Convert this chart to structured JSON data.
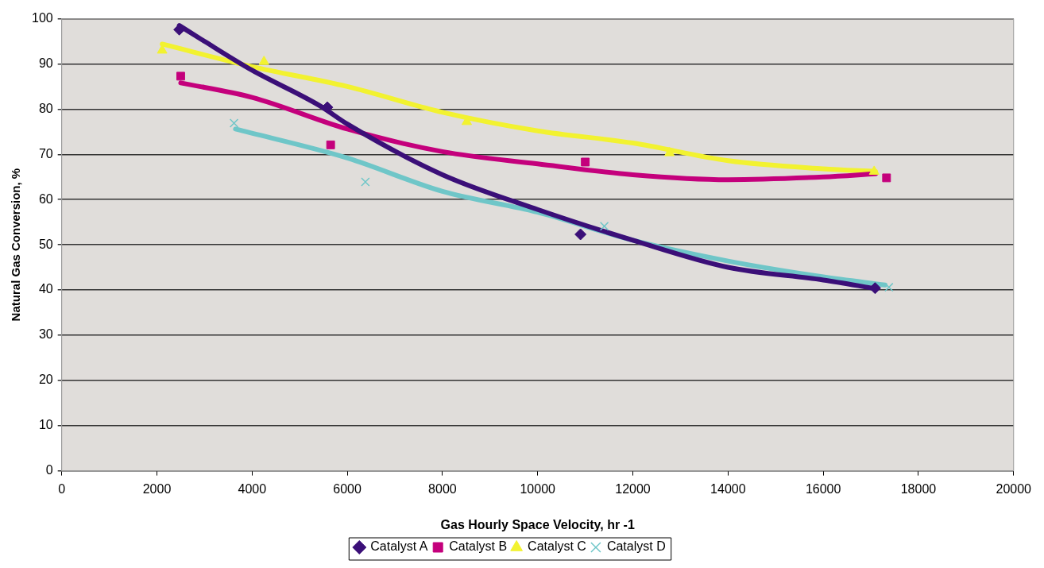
{
  "chart_data": {
    "type": "scatter",
    "xlabel": "Gas Hourly Space Velocity, hr -1",
    "ylabel": "Natural Gas Conversion, %",
    "xlim": [
      0,
      20000
    ],
    "xticks": [
      0,
      2000,
      4000,
      6000,
      8000,
      10000,
      12000,
      14000,
      16000,
      18000,
      20000
    ],
    "ylim": [
      0,
      100
    ],
    "yticks": [
      0,
      10,
      20,
      30,
      40,
      50,
      60,
      70,
      80,
      90,
      100
    ],
    "grid": "y",
    "legend": "bottom",
    "series": [
      {
        "name": "Catalyst A",
        "marker": "diamond",
        "color": "#3b0f78",
        "x": [
          2470,
          5580,
          10900,
          17090
        ],
        "values": [
          97.6,
          80.4,
          52.3,
          40.4
        ]
      },
      {
        "name": "Catalyst B",
        "marker": "square",
        "color": "#c4007c",
        "x": [
          2500,
          5650,
          11000,
          17330
        ],
        "values": [
          87.3,
          72.1,
          68.3,
          64.8
        ]
      },
      {
        "name": "Catalyst C",
        "marker": "triangle",
        "color": "#f2f230",
        "x": [
          2110,
          4250,
          8510,
          12770,
          17070
        ],
        "values": [
          93,
          90.5,
          77.2,
          70.3,
          66.2
        ]
      },
      {
        "name": "Catalyst D",
        "marker": "cross",
        "color": "#6fc6c8",
        "x": [
          3620,
          6380,
          11400,
          17380
        ],
        "values": [
          76.9,
          63.9,
          54.1,
          40.6
        ]
      },
      {
        "type": "line",
        "marker": "none",
        "line_style": "solid",
        "color": "#3b0f78",
        "x": [
          2470,
          3000,
          4000,
          5430,
          6000,
          8000,
          10000,
          12000,
          14000,
          16000,
          17100
        ],
        "values": [
          98.5,
          95,
          88.6,
          80.7,
          76.7,
          65.5,
          57.8,
          51,
          45,
          42.2,
          40.3
        ]
      },
      {
        "type": "line",
        "marker": "none",
        "line_style": "solid",
        "color": "#c4007c",
        "x": [
          2500,
          4000,
          6000,
          8000,
          10000,
          12000,
          14000,
          16000,
          17100
        ],
        "values": [
          85.8,
          82.6,
          75.6,
          70.6,
          67.9,
          65.5,
          64.4,
          65,
          65.7
        ]
      },
      {
        "type": "line",
        "marker": "none",
        "line_style": "solid",
        "color": "#f2f230",
        "x": [
          2110,
          4000,
          6000,
          8000,
          10000,
          12000,
          14000,
          16000,
          17100
        ],
        "values": [
          94.4,
          89.4,
          85,
          79.3,
          75.2,
          72.5,
          68.6,
          66.8,
          66.2
        ]
      },
      {
        "type": "line",
        "marker": "none",
        "line_style": "solid",
        "color": "#6fc6c8",
        "x": [
          3650,
          6000,
          8000,
          10000,
          12000,
          14000,
          16000,
          17300
        ],
        "values": [
          75.6,
          69.2,
          61.8,
          57.2,
          51,
          46.4,
          42.9,
          41.1
        ]
      }
    ]
  }
}
